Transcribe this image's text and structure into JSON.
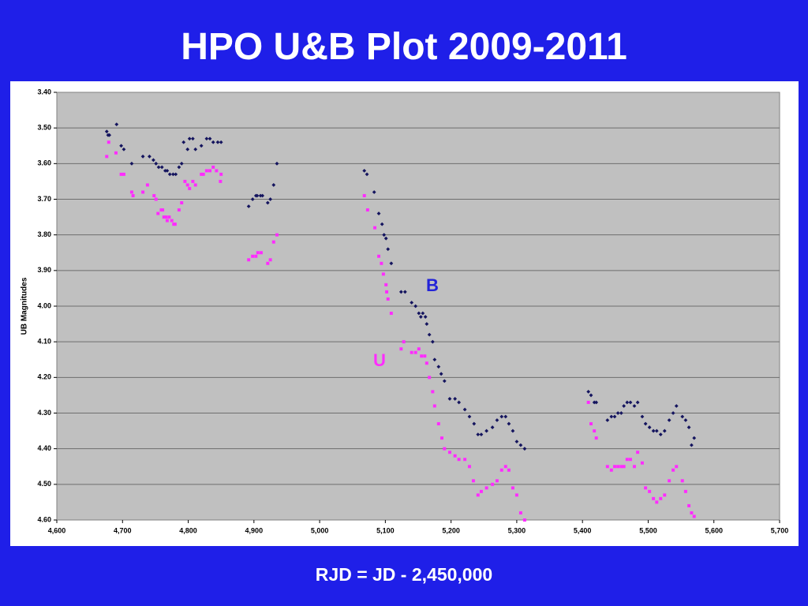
{
  "title": "HPO U&B Plot 2009-2011",
  "footer": "RJD = JD - 2,450,000",
  "chart_data": {
    "type": "scatter",
    "y_label": "UB Magnitudes",
    "xlim": [
      4600,
      5700
    ],
    "ylim": [
      3.4,
      4.6
    ],
    "y_inverted": true,
    "grid": true,
    "xticks": [
      {
        "value": 4600,
        "label": "4,600"
      },
      {
        "value": 4700,
        "label": "4,700"
      },
      {
        "value": 4800,
        "label": "4,800"
      },
      {
        "value": 4900,
        "label": "4,900"
      },
      {
        "value": 5000,
        "label": "5,000"
      },
      {
        "value": 5100,
        "label": "5,100"
      },
      {
        "value": 5200,
        "label": "5,200"
      },
      {
        "value": 5300,
        "label": "5,300"
      },
      {
        "value": 5400,
        "label": "5,400"
      },
      {
        "value": 5500,
        "label": "5,500"
      },
      {
        "value": 5600,
        "label": "5,600"
      },
      {
        "value": 5700,
        "label": "5,700"
      }
    ],
    "yticks": [
      {
        "value": 3.4,
        "label": "3.40"
      },
      {
        "value": 3.5,
        "label": "3.50"
      },
      {
        "value": 3.6,
        "label": "3.60"
      },
      {
        "value": 3.7,
        "label": "3.70"
      },
      {
        "value": 3.8,
        "label": "3.80"
      },
      {
        "value": 3.9,
        "label": "3.90"
      },
      {
        "value": 4.0,
        "label": "4.00"
      },
      {
        "value": 4.1,
        "label": "4.10"
      },
      {
        "value": 4.2,
        "label": "4.20"
      },
      {
        "value": 4.3,
        "label": "4.30"
      },
      {
        "value": 4.4,
        "label": "4.40"
      },
      {
        "value": 4.5,
        "label": "4.50"
      },
      {
        "value": 4.6,
        "label": "4.60"
      }
    ],
    "series": [
      {
        "name": "B",
        "color": "#14145e",
        "marker": "diamond",
        "x": [
          4676,
          4678,
          4680,
          4691,
          4698,
          4702,
          4714,
          4731,
          4741,
          4747,
          4751,
          4755,
          4760,
          4765,
          4768,
          4772,
          4777,
          4781,
          4786,
          4790,
          4793,
          4799,
          4802,
          4807,
          4811,
          4820,
          4828,
          4833,
          4838,
          4845,
          4850,
          4892,
          4898,
          4903,
          4905,
          4910,
          4913,
          4921,
          4925,
          4930,
          4935,
          5068,
          5072,
          5083,
          5090,
          5095,
          5098,
          5101,
          5104,
          5109,
          5124,
          5130,
          5140,
          5146,
          5151,
          5154,
          5157,
          5161,
          5163,
          5167,
          5172,
          5175,
          5181,
          5185,
          5190,
          5198,
          5206,
          5212,
          5221,
          5228,
          5235,
          5241,
          5246,
          5254,
          5263,
          5270,
          5277,
          5283,
          5288,
          5294,
          5300,
          5306,
          5312,
          5409,
          5413,
          5418,
          5421,
          5438,
          5444,
          5449,
          5454,
          5459,
          5463,
          5468,
          5473,
          5479,
          5484,
          5491,
          5496,
          5502,
          5508,
          5513,
          5519,
          5525,
          5532,
          5538,
          5543,
          5552,
          5557,
          5562,
          5566,
          5570
        ],
        "values": [
          3.51,
          3.52,
          3.52,
          3.49,
          3.55,
          3.56,
          3.6,
          3.58,
          3.58,
          3.59,
          3.6,
          3.61,
          3.61,
          3.62,
          3.62,
          3.63,
          3.63,
          3.63,
          3.61,
          3.6,
          3.54,
          3.56,
          3.53,
          3.53,
          3.56,
          3.55,
          3.53,
          3.53,
          3.54,
          3.54,
          3.54,
          3.72,
          3.7,
          3.69,
          3.69,
          3.69,
          3.69,
          3.71,
          3.7,
          3.66,
          3.6,
          3.62,
          3.63,
          3.68,
          3.74,
          3.77,
          3.8,
          3.81,
          3.84,
          3.88,
          3.96,
          3.96,
          3.99,
          4.0,
          4.02,
          4.03,
          4.02,
          4.03,
          4.05,
          4.08,
          4.1,
          4.15,
          4.17,
          4.19,
          4.21,
          4.26,
          4.26,
          4.27,
          4.29,
          4.31,
          4.33,
          4.36,
          4.36,
          4.35,
          4.34,
          4.32,
          4.31,
          4.31,
          4.33,
          4.35,
          4.38,
          4.39,
          4.4,
          4.24,
          4.25,
          4.27,
          4.27,
          4.32,
          4.31,
          4.31,
          4.3,
          4.3,
          4.28,
          4.27,
          4.27,
          4.28,
          4.27,
          4.31,
          4.33,
          4.34,
          4.35,
          4.35,
          4.36,
          4.35,
          4.32,
          4.3,
          4.28,
          4.31,
          4.32,
          4.34,
          4.39,
          4.37
        ]
      },
      {
        "name": "U",
        "color": "#ff2cff",
        "marker": "square",
        "x": [
          4676,
          4679,
          4690,
          4698,
          4702,
          4714,
          4716,
          4731,
          4738,
          4748,
          4751,
          4754,
          4759,
          4761,
          4763,
          4766,
          4768,
          4771,
          4775,
          4778,
          4780,
          4786,
          4790,
          4795,
          4799,
          4802,
          4807,
          4811,
          4820,
          4823,
          4828,
          4833,
          4838,
          4843,
          4849,
          4850,
          4892,
          4898,
          4903,
          4906,
          4911,
          4921,
          4925,
          4930,
          4935,
          5068,
          5073,
          5084,
          5090,
          5094,
          5097,
          5101,
          5102,
          5104,
          5109,
          5124,
          5128,
          5140,
          5146,
          5151,
          5155,
          5160,
          5163,
          5167,
          5172,
          5175,
          5181,
          5186,
          5190,
          5198,
          5206,
          5212,
          5221,
          5228,
          5234,
          5241,
          5246,
          5254,
          5263,
          5270,
          5277,
          5283,
          5288,
          5294,
          5300,
          5306,
          5312,
          5409,
          5413,
          5418,
          5421,
          5438,
          5444,
          5449,
          5454,
          5459,
          5463,
          5468,
          5473,
          5479,
          5484,
          5491,
          5496,
          5502,
          5508,
          5513,
          5519,
          5525,
          5532,
          5538,
          5543,
          5552,
          5557,
          5562,
          5566,
          5570
        ],
        "values": [
          3.58,
          3.54,
          3.57,
          3.63,
          3.63,
          3.68,
          3.69,
          3.68,
          3.66,
          3.69,
          3.7,
          3.74,
          3.73,
          3.73,
          3.75,
          3.75,
          3.76,
          3.75,
          3.76,
          3.77,
          3.77,
          3.73,
          3.71,
          3.65,
          3.66,
          3.67,
          3.65,
          3.66,
          3.63,
          3.63,
          3.62,
          3.62,
          3.61,
          3.62,
          3.65,
          3.63,
          3.87,
          3.86,
          3.86,
          3.85,
          3.85,
          3.88,
          3.87,
          3.82,
          3.8,
          3.69,
          3.73,
          3.78,
          3.86,
          3.88,
          3.91,
          3.94,
          3.96,
          3.98,
          4.02,
          4.12,
          4.1,
          4.13,
          4.13,
          4.12,
          4.14,
          4.14,
          4.16,
          4.2,
          4.24,
          4.28,
          4.33,
          4.37,
          4.4,
          4.41,
          4.42,
          4.43,
          4.43,
          4.45,
          4.49,
          4.53,
          4.52,
          4.51,
          4.5,
          4.49,
          4.46,
          4.45,
          4.46,
          4.51,
          4.53,
          4.58,
          4.6,
          4.27,
          4.33,
          4.35,
          4.37,
          4.45,
          4.46,
          4.45,
          4.45,
          4.45,
          4.45,
          4.43,
          4.43,
          4.45,
          4.41,
          4.44,
          4.51,
          4.52,
          4.54,
          4.55,
          4.54,
          4.53,
          4.49,
          4.46,
          4.45,
          4.49,
          4.52,
          4.56,
          4.58,
          4.59
        ]
      }
    ]
  }
}
